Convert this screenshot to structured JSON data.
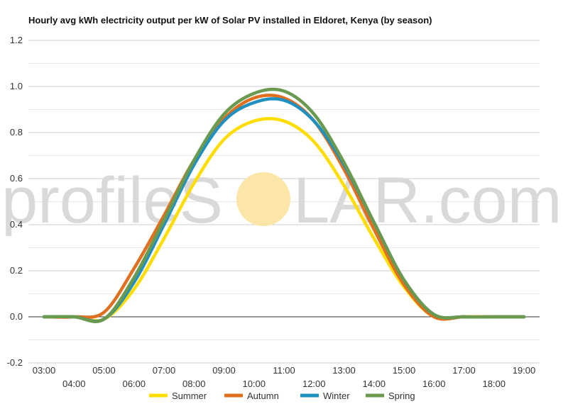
{
  "watermark": {
    "left_text": "profileS",
    "right_text": "LAR.com",
    "sun_color": "#fbe6a8"
  },
  "chart_data": {
    "type": "line",
    "title": "Hourly avg kWh electricity output per kW of Solar PV installed in Eldoret, Kenya (by season)",
    "xlabel": "",
    "ylabel": "",
    "x_hours": [
      3,
      4,
      5,
      6,
      7,
      8,
      9,
      10,
      11,
      12,
      13,
      14,
      15,
      16,
      17,
      18,
      19
    ],
    "x_tick_labels": [
      "03:00",
      "04:00",
      "05:00",
      "06:00",
      "07:00",
      "08:00",
      "09:00",
      "10:00",
      "11:00",
      "12:00",
      "13:00",
      "14:00",
      "15:00",
      "16:00",
      "17:00",
      "18:00",
      "19:00"
    ],
    "ylim": [
      -0.2,
      1.2
    ],
    "y_ticks": [
      -0.2,
      0.0,
      0.2,
      0.4,
      0.6,
      0.8,
      1.0,
      1.2
    ],
    "y_tick_labels": [
      "-0.2",
      "0.0",
      "0.2",
      "0.4",
      "0.6",
      "0.8",
      "1.0",
      "1.2"
    ],
    "grid": true,
    "legend_position": "bottom",
    "series": [
      {
        "name": "Summer",
        "color": "#ffdd00",
        "values": [
          0.0,
          0.0,
          -0.01,
          0.12,
          0.34,
          0.58,
          0.77,
          0.85,
          0.85,
          0.76,
          0.57,
          0.34,
          0.13,
          0.0,
          0.0,
          0.0,
          0.0
        ]
      },
      {
        "name": "Autumn",
        "color": "#e07020",
        "values": [
          0.0,
          0.0,
          0.02,
          0.21,
          0.44,
          0.68,
          0.86,
          0.95,
          0.95,
          0.85,
          0.64,
          0.38,
          0.14,
          0.0,
          0.0,
          0.0,
          0.0
        ]
      },
      {
        "name": "Winter",
        "color": "#2090c0",
        "values": [
          0.0,
          0.0,
          -0.01,
          0.15,
          0.4,
          0.66,
          0.85,
          0.93,
          0.94,
          0.85,
          0.66,
          0.41,
          0.16,
          0.01,
          0.0,
          0.0,
          0.0
        ]
      },
      {
        "name": "Spring",
        "color": "#6a9a50",
        "values": [
          0.0,
          0.0,
          -0.01,
          0.17,
          0.42,
          0.68,
          0.88,
          0.97,
          0.98,
          0.88,
          0.67,
          0.41,
          0.16,
          0.01,
          0.0,
          0.0,
          0.0
        ]
      }
    ]
  }
}
